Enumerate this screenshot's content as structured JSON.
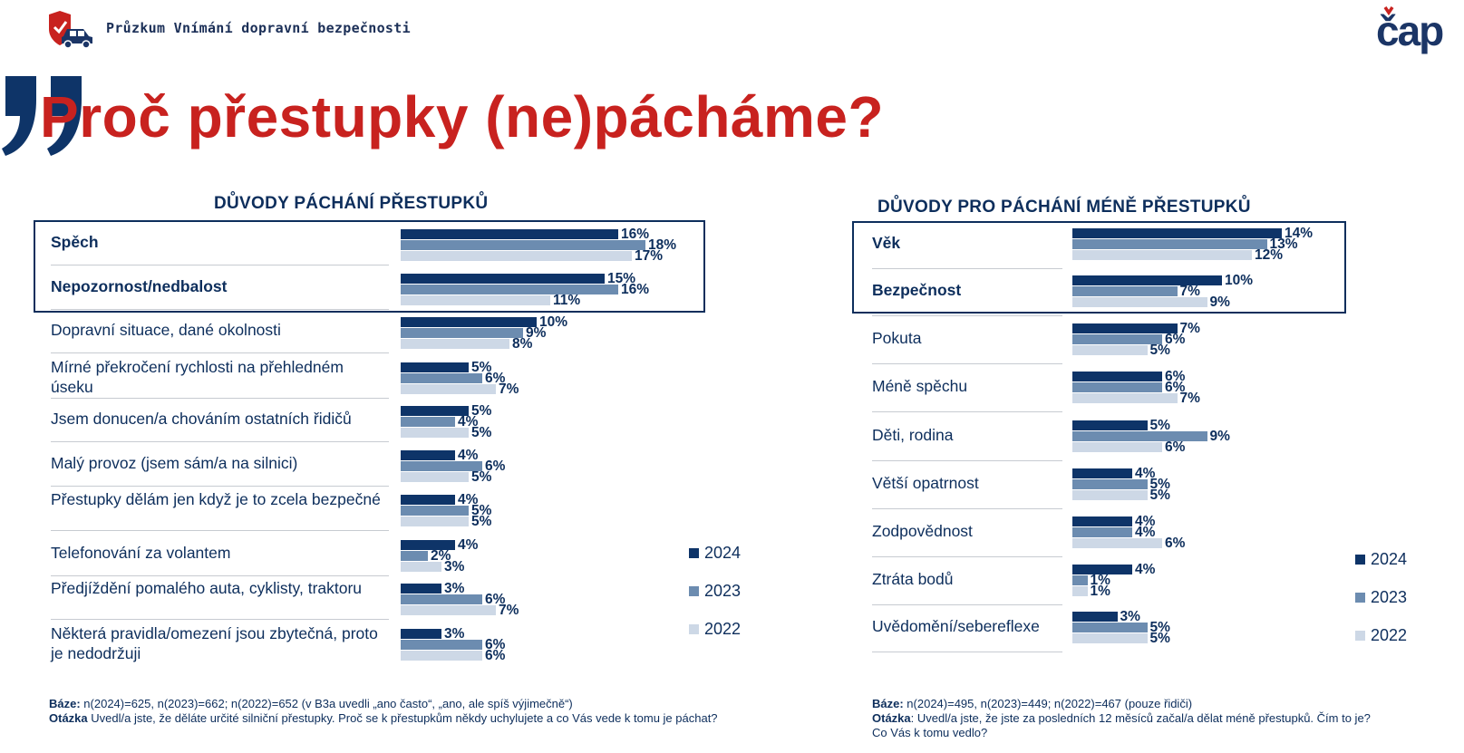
{
  "header": {
    "survey_title": "Průzkum Vnímání dopravní bezpečnosti",
    "brand": "čap"
  },
  "page_title": "Proč přestupky (ne)pácháme?",
  "colors": {
    "s2024": "#0e3468",
    "s2023": "#6c8cb0",
    "s2022": "#cdd8e6",
    "title_red": "#c8221f"
  },
  "chart_data": [
    {
      "type": "bar",
      "orientation": "horizontal",
      "title": "DŮVODY PÁCHÁNÍ PŘESTUPKŮ",
      "unit": "%",
      "categories": [
        "Spěch",
        "Nepozornost/nedbalost",
        "Dopravní situace, dané okolnosti",
        "Mírné překročení rychlosti na přehledném úseku",
        "Jsem donucen/a chováním ostatních řidičů",
        "Malý provoz (jsem sám/a na silnici)",
        "Přestupky dělám jen když je to zcela bezpečné",
        "Telefonování za volantem",
        "Předjíždění pomalého auta, cyklisty, traktoru",
        "Některá pravidla/omezení jsou zbytečná, proto je nedodržuji"
      ],
      "highlighted_categories": [
        "Spěch",
        "Nepozornost/nedbalost"
      ],
      "series": [
        {
          "name": "2024",
          "values": [
            16,
            15,
            10,
            5,
            5,
            4,
            4,
            4,
            3,
            3
          ]
        },
        {
          "name": "2023",
          "values": [
            18,
            16,
            9,
            6,
            4,
            6,
            5,
            2,
            6,
            6
          ]
        },
        {
          "name": "2022",
          "values": [
            17,
            11,
            8,
            7,
            5,
            5,
            5,
            3,
            7,
            6
          ]
        }
      ],
      "legend": [
        "2024",
        "2023",
        "2022"
      ],
      "legend_position": "right"
    },
    {
      "type": "bar",
      "orientation": "horizontal",
      "title": "DŮVODY PRO PÁCHÁNÍ MÉNĚ  PŘESTUPKŮ",
      "unit": "%",
      "categories": [
        "Věk",
        "Bezpečnost",
        "Pokuta",
        "Méně spěchu",
        "Děti, rodina",
        "Větší opatrnost",
        "Zodpovědnost",
        "Ztráta bodů",
        "Uvědomění/sebereflexe"
      ],
      "highlighted_categories": [
        "Věk",
        "Bezpečnost"
      ],
      "series": [
        {
          "name": "2024",
          "values": [
            14,
            10,
            7,
            6,
            5,
            4,
            4,
            4,
            3
          ]
        },
        {
          "name": "2023",
          "values": [
            13,
            7,
            6,
            6,
            9,
            5,
            4,
            1,
            5
          ]
        },
        {
          "name": "2022",
          "values": [
            12,
            9,
            5,
            7,
            6,
            5,
            6,
            1,
            5
          ]
        }
      ],
      "legend": [
        "2024",
        "2023",
        "2022"
      ],
      "legend_position": "right"
    }
  ],
  "footnotes": {
    "left": {
      "base_label": "Báze:",
      "base_text": " n(2024)=625, n(2023)=662; n(2022)=652 (v B3a uvedli „ano často“, „ano, ale spíš výjimečně“)",
      "question_label": "Otázka",
      "question_text": " Uvedl/a jste, že děláte určité silniční přestupky. Proč se k přestupkům někdy uchylujete a co Vás vede k tomu je páchat?"
    },
    "right": {
      "base_label": "Báze:",
      "base_text": " n(2024)=495, n(2023)=449; n(2022)=467 (pouze řidiči)",
      "question_label": "Otázka",
      "question_text": ": Uvedl/a jste, že jste za posledních 12 měsíců začal/a dělat méně přestupků. Čím to je? Co Vás k tomu vedlo?"
    }
  }
}
